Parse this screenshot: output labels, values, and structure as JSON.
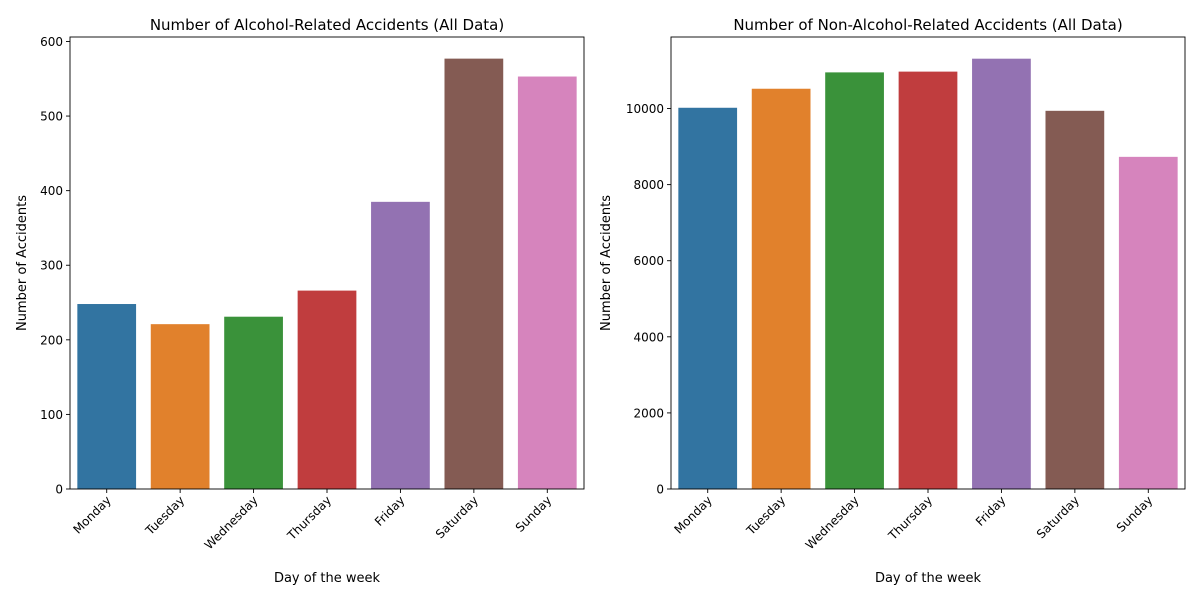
{
  "figure": {
    "background": "#ffffff"
  },
  "chart_data": [
    {
      "type": "bar",
      "title": "Number of Alcohol-Related Accidents (All Data)",
      "xlabel": "Day of the week",
      "ylabel": "Number of Accidents",
      "categories": [
        "Monday",
        "Tuesday",
        "Wednesday",
        "Thursday",
        "Friday",
        "Saturday",
        "Sunday"
      ],
      "values": [
        248,
        221,
        231,
        266,
        385,
        577,
        553
      ],
      "colors": [
        "#3274a1",
        "#e1812c",
        "#3a923a",
        "#c03d3e",
        "#9372b2",
        "#845b53",
        "#d684bd"
      ],
      "ylim": [
        0,
        606
      ],
      "yticks": [
        0,
        100,
        200,
        300,
        400,
        500,
        600
      ],
      "ytick_labels": [
        "0",
        "100",
        "200",
        "300",
        "400",
        "500",
        "600"
      ],
      "grid": false,
      "legend": "none"
    },
    {
      "type": "bar",
      "title": "Number of Non-Alcohol-Related Accidents (All Data)",
      "xlabel": "Day of the week",
      "ylabel": "Number of Accidents",
      "categories": [
        "Monday",
        "Tuesday",
        "Wednesday",
        "Thursday",
        "Friday",
        "Saturday",
        "Sunday"
      ],
      "values": [
        10020,
        10520,
        10950,
        10970,
        11310,
        9940,
        8730
      ],
      "colors": [
        "#3274a1",
        "#e1812c",
        "#3a923a",
        "#c03d3e",
        "#9372b2",
        "#845b53",
        "#d684bd"
      ],
      "ylim": [
        0,
        11880
      ],
      "yticks": [
        0,
        2000,
        4000,
        6000,
        8000,
        10000
      ],
      "ytick_labels": [
        "0",
        "2000",
        "4000",
        "6000",
        "8000",
        "10000"
      ],
      "grid": false,
      "legend": "none"
    }
  ]
}
